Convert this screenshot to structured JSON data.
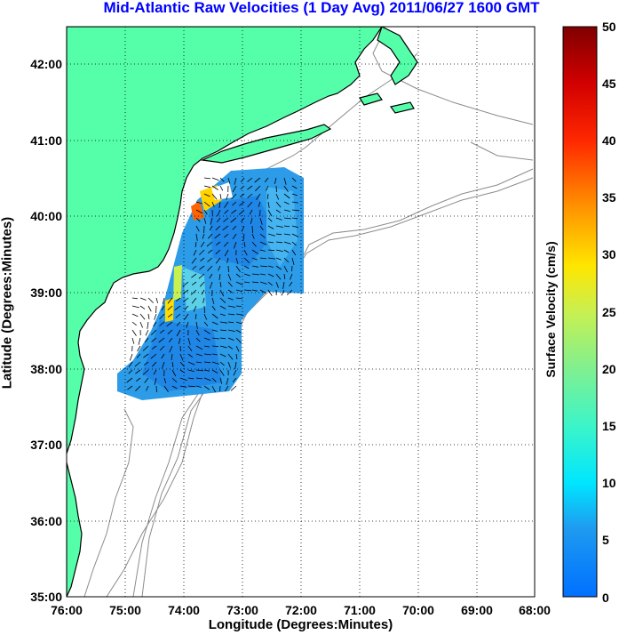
{
  "title": "Mid-Atlantic Raw Velocities (1 Day Avg) 2011/06/27 1600 GMT",
  "axes": {
    "xlabel": "Longitude (Degrees:Minutes)",
    "ylabel": "Latitude (Degrees:Minutes)",
    "xticks": [
      "76:00",
      "75:00",
      "74:00",
      "73:00",
      "72:00",
      "71:00",
      "70:00",
      "69:00",
      "68:00"
    ],
    "yticks": [
      "42:00",
      "41:00",
      "40:00",
      "39:00",
      "38:00",
      "37:00",
      "36:00",
      "35:00"
    ],
    "grid": "dotted"
  },
  "colorbar": {
    "label": "Surface Velocity (cm/s)",
    "ticks": [
      "50",
      "45",
      "40",
      "35",
      "30",
      "25",
      "20",
      "15",
      "10",
      "5",
      "0"
    ],
    "range": [
      0,
      50
    ]
  },
  "colors": {
    "land": "#55ffaa",
    "coast": "#000000",
    "bathymetry": "#8c8c8c",
    "title": "#0000ff",
    "arrows": "#000000",
    "field_typical": "#2c9be8"
  }
}
